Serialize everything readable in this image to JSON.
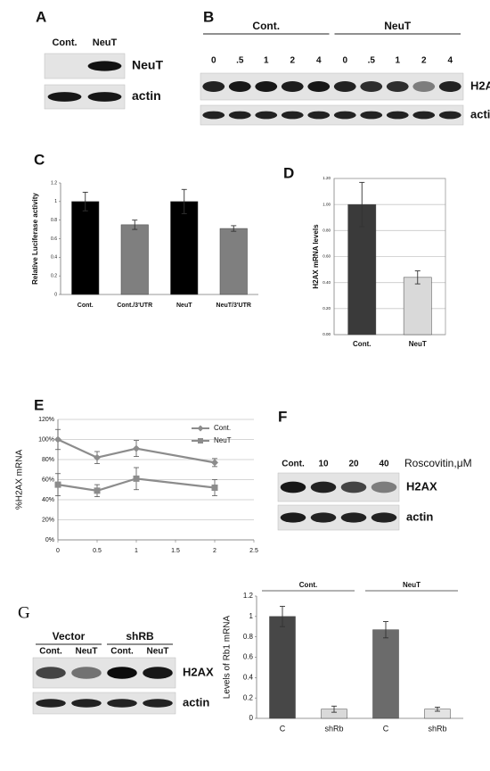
{
  "panel_labels": [
    "A",
    "B",
    "C",
    "D",
    "E",
    "F",
    "G"
  ],
  "blots": [
    {
      "lanes": [
        "Cont.",
        "NeuT"
      ],
      "rows": [
        "NeuT",
        "actin"
      ]
    },
    {
      "groups": [
        "Cont.",
        "NeuT"
      ],
      "lanes": [
        "0",
        ".5",
        "1",
        "2",
        "4",
        "0",
        ".5",
        "1",
        "2",
        "4"
      ],
      "rows": [
        "H2AX",
        "actin"
      ]
    },
    {
      "lanes": [
        "Cont.",
        "10",
        "20",
        "40"
      ],
      "unit": "Roscovitin,μM",
      "rows": [
        "H2AX",
        "actin"
      ]
    },
    {
      "groups": [
        "Vector",
        "shRB"
      ],
      "lanes": [
        "Cont.",
        "NeuT",
        "Cont.",
        "NeuT"
      ],
      "rows": [
        "H2AX",
        "actin"
      ]
    }
  ],
  "chart_data": [
    {
      "type": "bar",
      "ylabel": "Relative Luciferase activity",
      "categories": [
        "Cont.",
        "Cont./3'UTR",
        "NeuT",
        "NeuT/3'UTR"
      ],
      "values": [
        1,
        0.75,
        1,
        0.71
      ],
      "errors": [
        0.1,
        0.05,
        0.13,
        0.03
      ],
      "colors": [
        "#000000",
        "#7f7f7f",
        "#000000",
        "#7f7f7f"
      ],
      "ylim": [
        0,
        1.2
      ],
      "yticks": [
        0,
        0.2,
        0.4,
        0.6,
        0.8,
        1,
        1.2
      ],
      "grid": false
    },
    {
      "type": "bar",
      "ylabel": "H2AX mRNA levels",
      "categories": [
        "Cont.",
        "NeuT"
      ],
      "values": [
        1,
        0.44
      ],
      "errors": [
        0.17,
        0.05
      ],
      "colors": [
        "#3a3a3a",
        "#d9d9d9"
      ],
      "ylim": [
        0,
        1.2
      ],
      "yticks": [
        {
          "value": 0,
          "label": "0.00"
        },
        {
          "value": 0.2,
          "label": "0.20"
        },
        {
          "value": 0.4,
          "label": "0.40"
        },
        {
          "value": 0.6,
          "label": "0.60"
        },
        {
          "value": 0.8,
          "label": "0.80"
        },
        {
          "value": 1,
          "label": "1.00"
        },
        {
          "value": 1.2,
          "label": "1.20"
        }
      ],
      "grid": true
    },
    {
      "type": "line",
      "ylabel": "%H2AX mRNA",
      "x": [
        0,
        0.5,
        1,
        2
      ],
      "series": [
        {
          "name": "Cont.",
          "color": "#8c8c8c",
          "marker": "diamond",
          "values": [
            100,
            82,
            91,
            77
          ],
          "errors": [
            10,
            6,
            8,
            4
          ]
        },
        {
          "name": "NeuT",
          "color": "#8c8c8c",
          "marker": "square",
          "values": [
            55,
            49,
            61,
            52
          ],
          "errors": [
            11,
            6,
            11,
            8
          ]
        }
      ],
      "xlim": [
        0,
        2.5
      ],
      "xticks": [
        0,
        0.5,
        1,
        1.5,
        2,
        2.5
      ],
      "ylim": [
        0,
        120
      ],
      "yticks": [
        {
          "value": 0,
          "label": "0%"
        },
        {
          "value": 20,
          "label": "20%"
        },
        {
          "value": 40,
          "label": "40%"
        },
        {
          "value": 60,
          "label": "60%"
        },
        {
          "value": 80,
          "label": "80%"
        },
        {
          "value": 100,
          "label": "100%"
        },
        {
          "value": 120,
          "label": "120%"
        }
      ],
      "grid": true,
      "legend": "upper right"
    },
    {
      "type": "bar",
      "ylabel": "Levels of Rb1 mRNA",
      "group_labels": [
        "Cont.",
        "NeuT"
      ],
      "categories": [
        "C",
        "shRb",
        "C",
        "shRb"
      ],
      "values": [
        1,
        0.09,
        0.87,
        0.09
      ],
      "errors": [
        0.1,
        0.03,
        0.08,
        0.02
      ],
      "colors": [
        "#474747",
        "#d9d9d9",
        "#6b6b6b",
        "#e3e3e3"
      ],
      "ylim": [
        0,
        1.2
      ],
      "yticks": [
        0,
        0.2,
        0.4,
        0.6,
        0.8,
        1,
        1.2
      ],
      "grid": false
    }
  ]
}
